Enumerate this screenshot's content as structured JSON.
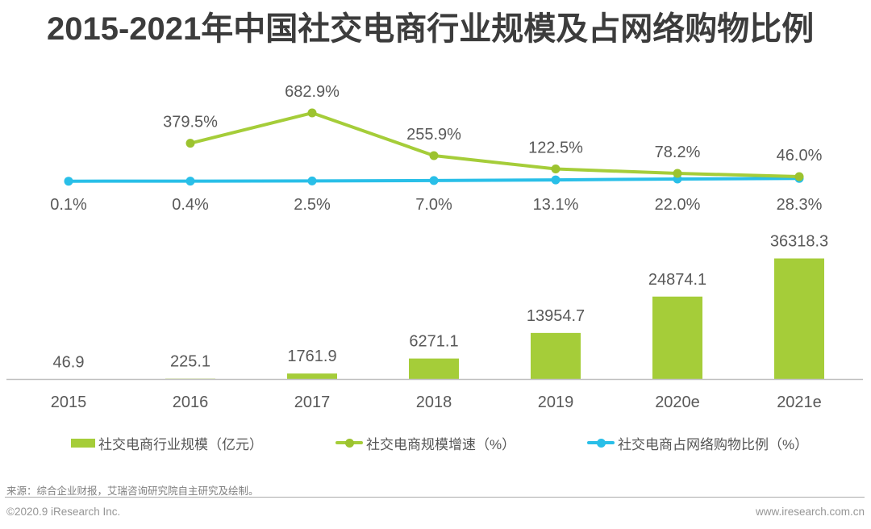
{
  "title": "2015-2021年中国社交电商行业规模及占网络购物比例",
  "chart_data": {
    "type": "bar+line combo",
    "title": "2015-2021年中国社交电商行业规模及占网络购物比例",
    "categories": [
      "2015",
      "2016",
      "2017",
      "2018",
      "2019",
      "2020e",
      "2021e"
    ],
    "series": [
      {
        "name": "社交电商行业规模（亿元）",
        "type": "bar",
        "color": "#a5cd39",
        "values": [
          46.9,
          225.1,
          1761.9,
          6271.1,
          13954.7,
          24874.1,
          36318.3
        ],
        "labels": [
          "46.9",
          "225.1",
          "1761.9",
          "6271.1",
          "13954.7",
          "24874.1",
          "36318.3"
        ]
      },
      {
        "name": "社交电商规模增速（%）",
        "type": "line",
        "color": "#a5cd39",
        "dot_color": "#9cc32f",
        "values": [
          null,
          379.5,
          682.9,
          255.9,
          122.5,
          78.2,
          46.0
        ],
        "labels": [
          "",
          "379.5%",
          "682.9%",
          "255.9%",
          "122.5%",
          "78.2%",
          "46.0%"
        ]
      },
      {
        "name": "社交电商占网络购物比例（%）",
        "type": "line",
        "color": "#29bfe8",
        "dot_color": "#29bfe8",
        "values": [
          0.1,
          0.4,
          2.5,
          7.0,
          13.1,
          22.0,
          28.3
        ],
        "labels": [
          "0.1%",
          "0.4%",
          "2.5%",
          "7.0%",
          "13.1%",
          "22.0%",
          "28.3%"
        ]
      }
    ],
    "xlabel": "",
    "ylabel": "",
    "grid": false,
    "legend_position": "bottom",
    "axis_color": "#bfbfbf",
    "label_color": "#595959"
  },
  "footer": {
    "source": "来源：综合企业财报，艾瑞咨询研究院自主研究及绘制。",
    "copyright": "©2020.9 iResearch Inc.",
    "website": "www.iresearch.com.cn"
  }
}
